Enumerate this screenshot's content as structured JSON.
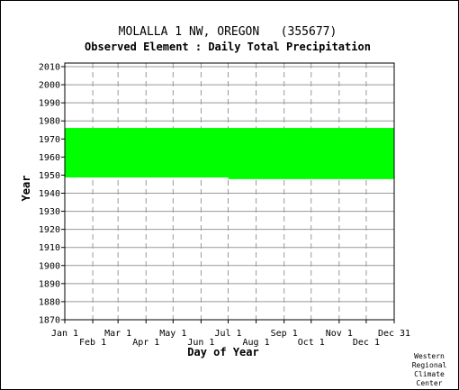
{
  "chart_data": {
    "type": "area",
    "title": "MOLALLA 1 NW, OREGON   (355677)",
    "subtitle": "Observed Element : Daily Total Precipitation",
    "xlabel": "Day of Year",
    "ylabel": "Year",
    "xlim": [
      1,
      366
    ],
    "ylim": [
      1870,
      2012
    ],
    "y_ticks": [
      1870,
      1880,
      1890,
      1900,
      1910,
      1920,
      1930,
      1940,
      1950,
      1960,
      1970,
      1980,
      1990,
      2000,
      2010
    ],
    "x_ticks_top_row": [
      {
        "label": "Jan 1",
        "day": 1
      },
      {
        "label": "Mar 1",
        "day": 60
      },
      {
        "label": "May 1",
        "day": 121
      },
      {
        "label": "Jul 1",
        "day": 182
      },
      {
        "label": "Sep 1",
        "day": 244
      },
      {
        "label": "Nov 1",
        "day": 305
      },
      {
        "label": "Dec 31",
        "day": 366
      }
    ],
    "x_ticks_bottom_row": [
      {
        "label": "Feb 1",
        "day": 32
      },
      {
        "label": "Apr 1",
        "day": 91
      },
      {
        "label": "Jun 1",
        "day": 152
      },
      {
        "label": "Aug 1",
        "day": 213
      },
      {
        "label": "Oct 1",
        "day": 274
      },
      {
        "label": "Dec 1",
        "day": 335
      }
    ],
    "grid": true,
    "series": [
      {
        "color": "#00ff00",
        "segments": [
          {
            "day_start": 1,
            "day_end": 182,
            "year_start": 1948.7,
            "year_end": 1976.1
          },
          {
            "day_start": 182,
            "day_end": 366,
            "year_start": 1947.8,
            "year_end": 1976.1
          }
        ]
      }
    ],
    "credit": [
      "Western",
      "Regional",
      "Climate",
      "Center"
    ]
  }
}
